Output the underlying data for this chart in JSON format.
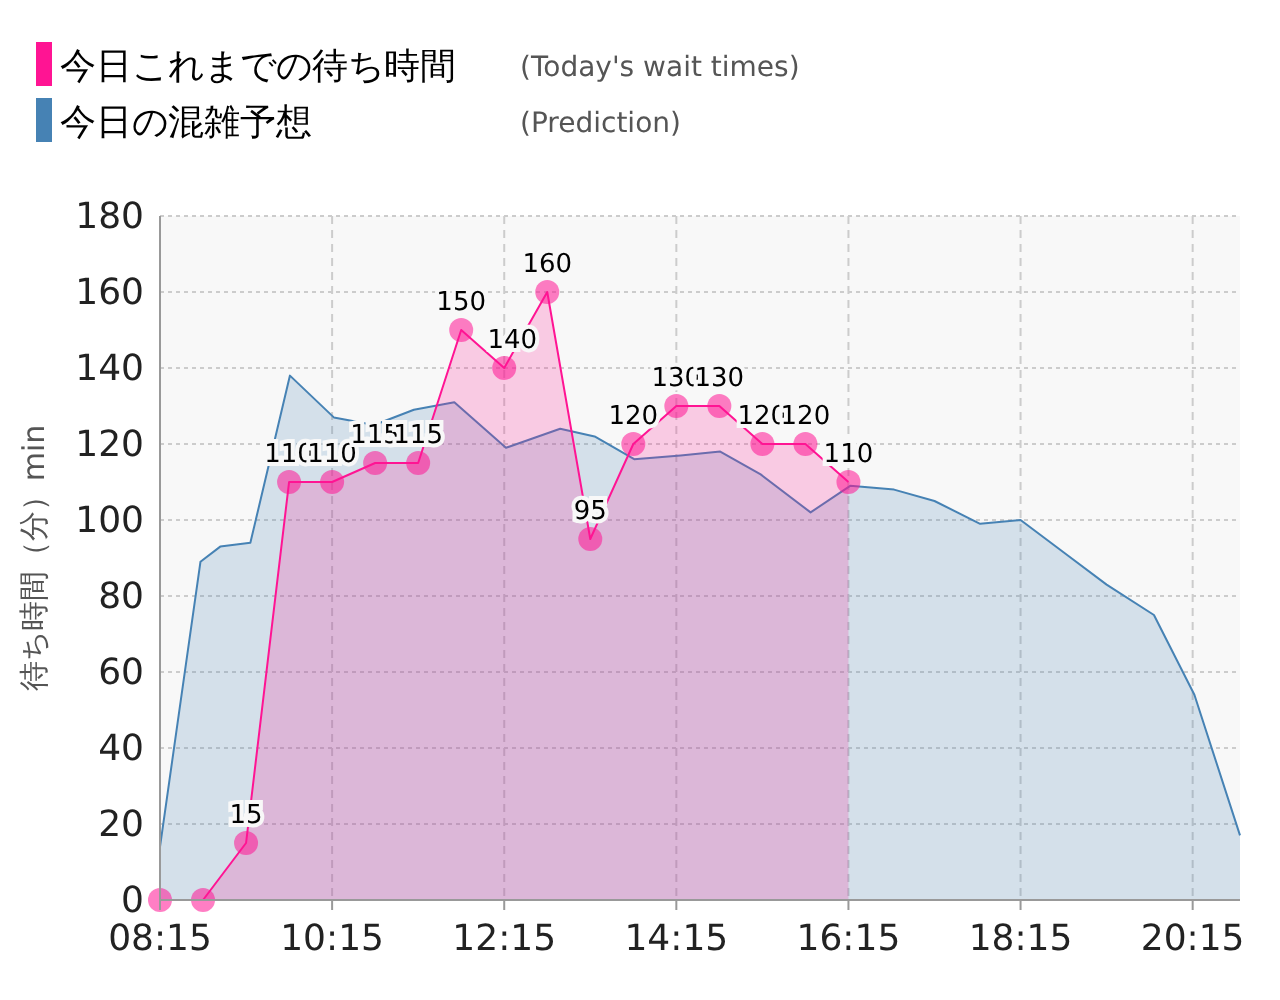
{
  "chart_data": {
    "type": "area",
    "ylabel": "待ち時間（分）min",
    "xlim": [
      8.25,
      20.8
    ],
    "ylim": [
      0,
      180
    ],
    "xticks": [
      {
        "value": 8.25,
        "label": "08:15"
      },
      {
        "value": 10.25,
        "label": "10:15"
      },
      {
        "value": 12.25,
        "label": "12:15"
      },
      {
        "value": 14.25,
        "label": "14:15"
      },
      {
        "value": 16.25,
        "label": "16:15"
      },
      {
        "value": 18.25,
        "label": "18:15"
      },
      {
        "value": 20.25,
        "label": "20:15"
      }
    ],
    "yticks": [
      0,
      20,
      40,
      60,
      80,
      100,
      120,
      140,
      160,
      180
    ],
    "grid": true,
    "legend": "top left",
    "annotations": [
      "(Today's wait times)",
      "(Prediction)"
    ],
    "series": [
      {
        "name": "今日の混雑予想",
        "color": "#4682b4",
        "marker": "none",
        "x": [
          8.25,
          8.72,
          8.95,
          9.3,
          9.76,
          10.27,
          10.74,
          11.2,
          11.67,
          12.27,
          12.9,
          13.3,
          13.76,
          14.3,
          14.76,
          15.23,
          15.81,
          16.27,
          16.78,
          17.25,
          17.78,
          18.25,
          18.78,
          19.25,
          19.8,
          20.27,
          20.8
        ],
        "values": [
          14,
          89,
          93,
          94,
          138,
          127,
          125,
          129,
          131,
          119,
          124,
          122,
          116,
          117,
          118,
          112,
          102,
          109,
          108,
          105,
          99,
          100,
          91,
          83,
          75,
          54,
          17
        ]
      },
      {
        "name": "今日これまでの待ち時間",
        "color": "#ff1493",
        "marker": "circle",
        "value_labels": [
          null,
          null,
          "15",
          "110",
          "110",
          "115",
          "115",
          "150",
          "140",
          "160",
          "95",
          "120",
          "130",
          "130",
          "120",
          "120",
          "110"
        ],
        "x": [
          8.25,
          8.75,
          9.25,
          9.75,
          10.25,
          10.75,
          11.25,
          11.75,
          12.25,
          12.75,
          13.25,
          13.75,
          14.25,
          14.75,
          15.25,
          15.75,
          16.25
        ],
        "values": [
          0,
          0,
          15,
          110,
          110,
          115,
          115,
          150,
          140,
          160,
          95,
          120,
          130,
          130,
          120,
          120,
          110
        ]
      }
    ]
  }
}
